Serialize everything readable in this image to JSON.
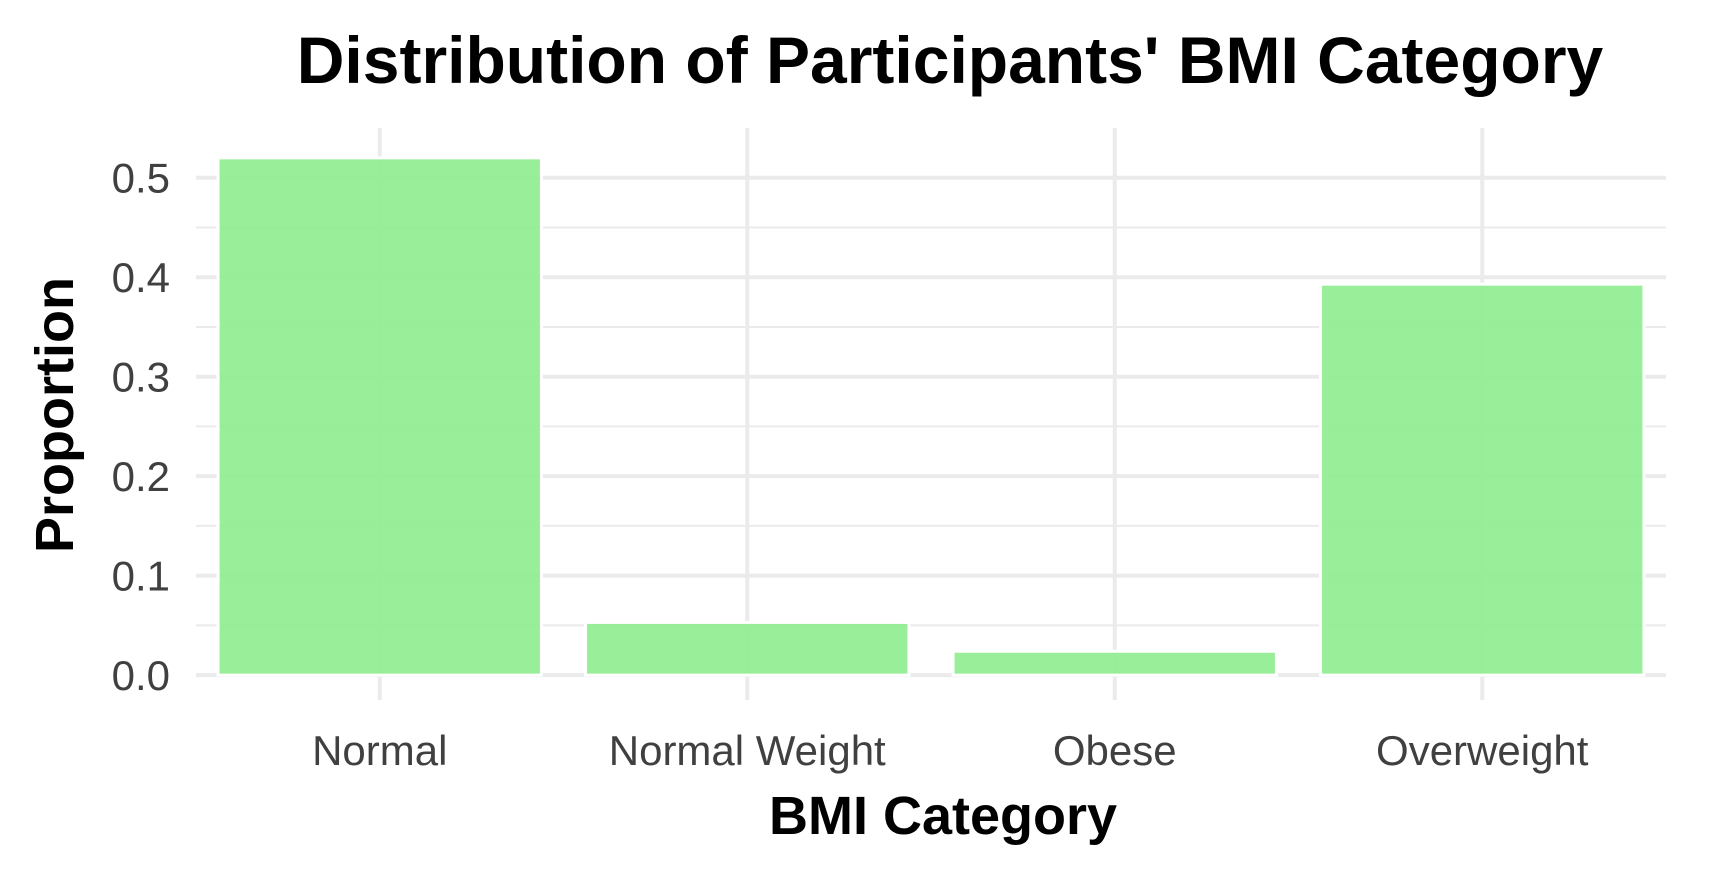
{
  "chart_data": {
    "type": "bar",
    "title": "Distribution of Participants' BMI Category",
    "xlabel": "BMI Category",
    "ylabel": "Proportion",
    "categories": [
      "Normal",
      "Normal Weight",
      "Obese",
      "Overweight"
    ],
    "values": [
      0.52,
      0.053,
      0.024,
      0.393
    ],
    "ylim": [
      -0.025,
      0.55
    ],
    "yticks": [
      "0.0",
      "0.1",
      "0.2",
      "0.3",
      "0.4",
      "0.5"
    ],
    "grid": true,
    "legend": "none",
    "colors": {
      "bar": "#90EE90",
      "grid": "#EBEBEB",
      "background": "#FFFFFF",
      "tick_text": "#404040",
      "title_text": "#000000"
    }
  }
}
